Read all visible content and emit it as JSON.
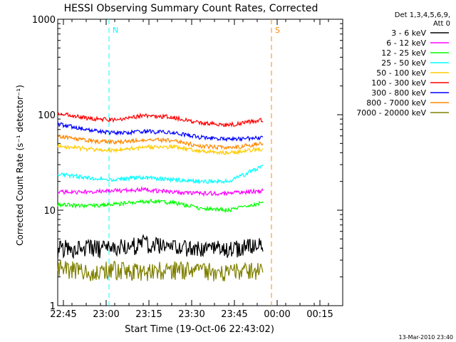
{
  "chart_data": {
    "type": "line",
    "title": "HESSI Observing Summary Count Rates, Corrected",
    "xlabel": "Start Time (19-Oct-06 22:43:02)",
    "ylabel": "Corrected Count Rate (s⁻¹ detector⁻¹)",
    "footer": "13-Mar-2010 23:40",
    "x_unit": "minutes after 22:43:02",
    "xlim": [
      0,
      100
    ],
    "ylim": [
      1,
      1000
    ],
    "yscale": "log",
    "x_ticks": [
      {
        "label": "22:45",
        "value": 2
      },
      {
        "label": "23:00",
        "value": 17
      },
      {
        "label": "23:15",
        "value": 32
      },
      {
        "label": "23:30",
        "value": 47
      },
      {
        "label": "23:45",
        "value": 62
      },
      {
        "label": "00:00",
        "value": 77
      },
      {
        "label": "00:15",
        "value": 92
      }
    ],
    "y_ticks": [
      {
        "label": "1",
        "value": 1
      },
      {
        "label": "10",
        "value": 10
      },
      {
        "label": "100",
        "value": 100
      },
      {
        "label": "1000",
        "value": 1000
      }
    ],
    "legend": {
      "header": [
        "Det 1,3,4,5,6,9,",
        "Att 0"
      ],
      "placement": "right"
    },
    "series": [
      {
        "name": "3 - 6 keV",
        "color": "#000000",
        "x": [
          0,
          10,
          20,
          30,
          40,
          50,
          60,
          72
        ],
        "y": [
          4,
          4,
          4,
          4.5,
          4,
          4,
          4,
          4.3
        ]
      },
      {
        "name": "6 - 12 keV",
        "color": "#ff00ff",
        "x": [
          0,
          10,
          20,
          30,
          40,
          50,
          60,
          72
        ],
        "y": [
          15.5,
          15.5,
          16,
          16.5,
          15.5,
          15,
          15,
          16
        ]
      },
      {
        "name": "12 - 25 keV",
        "color": "#00ff00",
        "x": [
          0,
          10,
          20,
          30,
          40,
          50,
          60,
          72
        ],
        "y": [
          11.5,
          11,
          11.5,
          12.5,
          12,
          10.5,
          10,
          12
        ]
      },
      {
        "name": "25 - 50 keV",
        "color": "#00ffff",
        "x": [
          0,
          10,
          20,
          30,
          40,
          50,
          60,
          72
        ],
        "y": [
          24,
          22,
          21,
          22,
          21,
          20,
          20,
          29
        ]
      },
      {
        "name": "50 - 100 keV",
        "color": "#ffcc00",
        "x": [
          0,
          10,
          20,
          30,
          40,
          50,
          60,
          72
        ],
        "y": [
          47,
          44,
          42,
          46,
          46,
          42,
          40,
          44
        ]
      },
      {
        "name": "100 - 300 keV",
        "color": "#ff0000",
        "x": [
          0,
          10,
          20,
          30,
          40,
          50,
          60,
          72
        ],
        "y": [
          105,
          92,
          88,
          98,
          95,
          82,
          78,
          88
        ]
      },
      {
        "name": "300 - 800 keV",
        "color": "#0000ff",
        "x": [
          0,
          10,
          20,
          30,
          40,
          50,
          60,
          72
        ],
        "y": [
          80,
          70,
          64,
          67,
          65,
          58,
          55,
          58
        ]
      },
      {
        "name": "800 - 7000 keV",
        "color": "#ff8800",
        "x": [
          0,
          10,
          20,
          30,
          40,
          50,
          60,
          72
        ],
        "y": [
          60,
          54,
          51,
          55,
          54,
          47,
          45,
          50
        ]
      },
      {
        "name": "7000 - 20000 keV",
        "color": "#808000",
        "x": [
          0,
          10,
          20,
          30,
          40,
          50,
          60,
          72
        ],
        "y": [
          2.5,
          2.3,
          2.4,
          2.3,
          2.4,
          2.3,
          2.3,
          2.4
        ]
      }
    ],
    "annotations": [
      {
        "text": "N",
        "x": 18,
        "color": "#00ffff"
      },
      {
        "text": "S",
        "x": 75,
        "color": "#ff8800"
      }
    ]
  }
}
